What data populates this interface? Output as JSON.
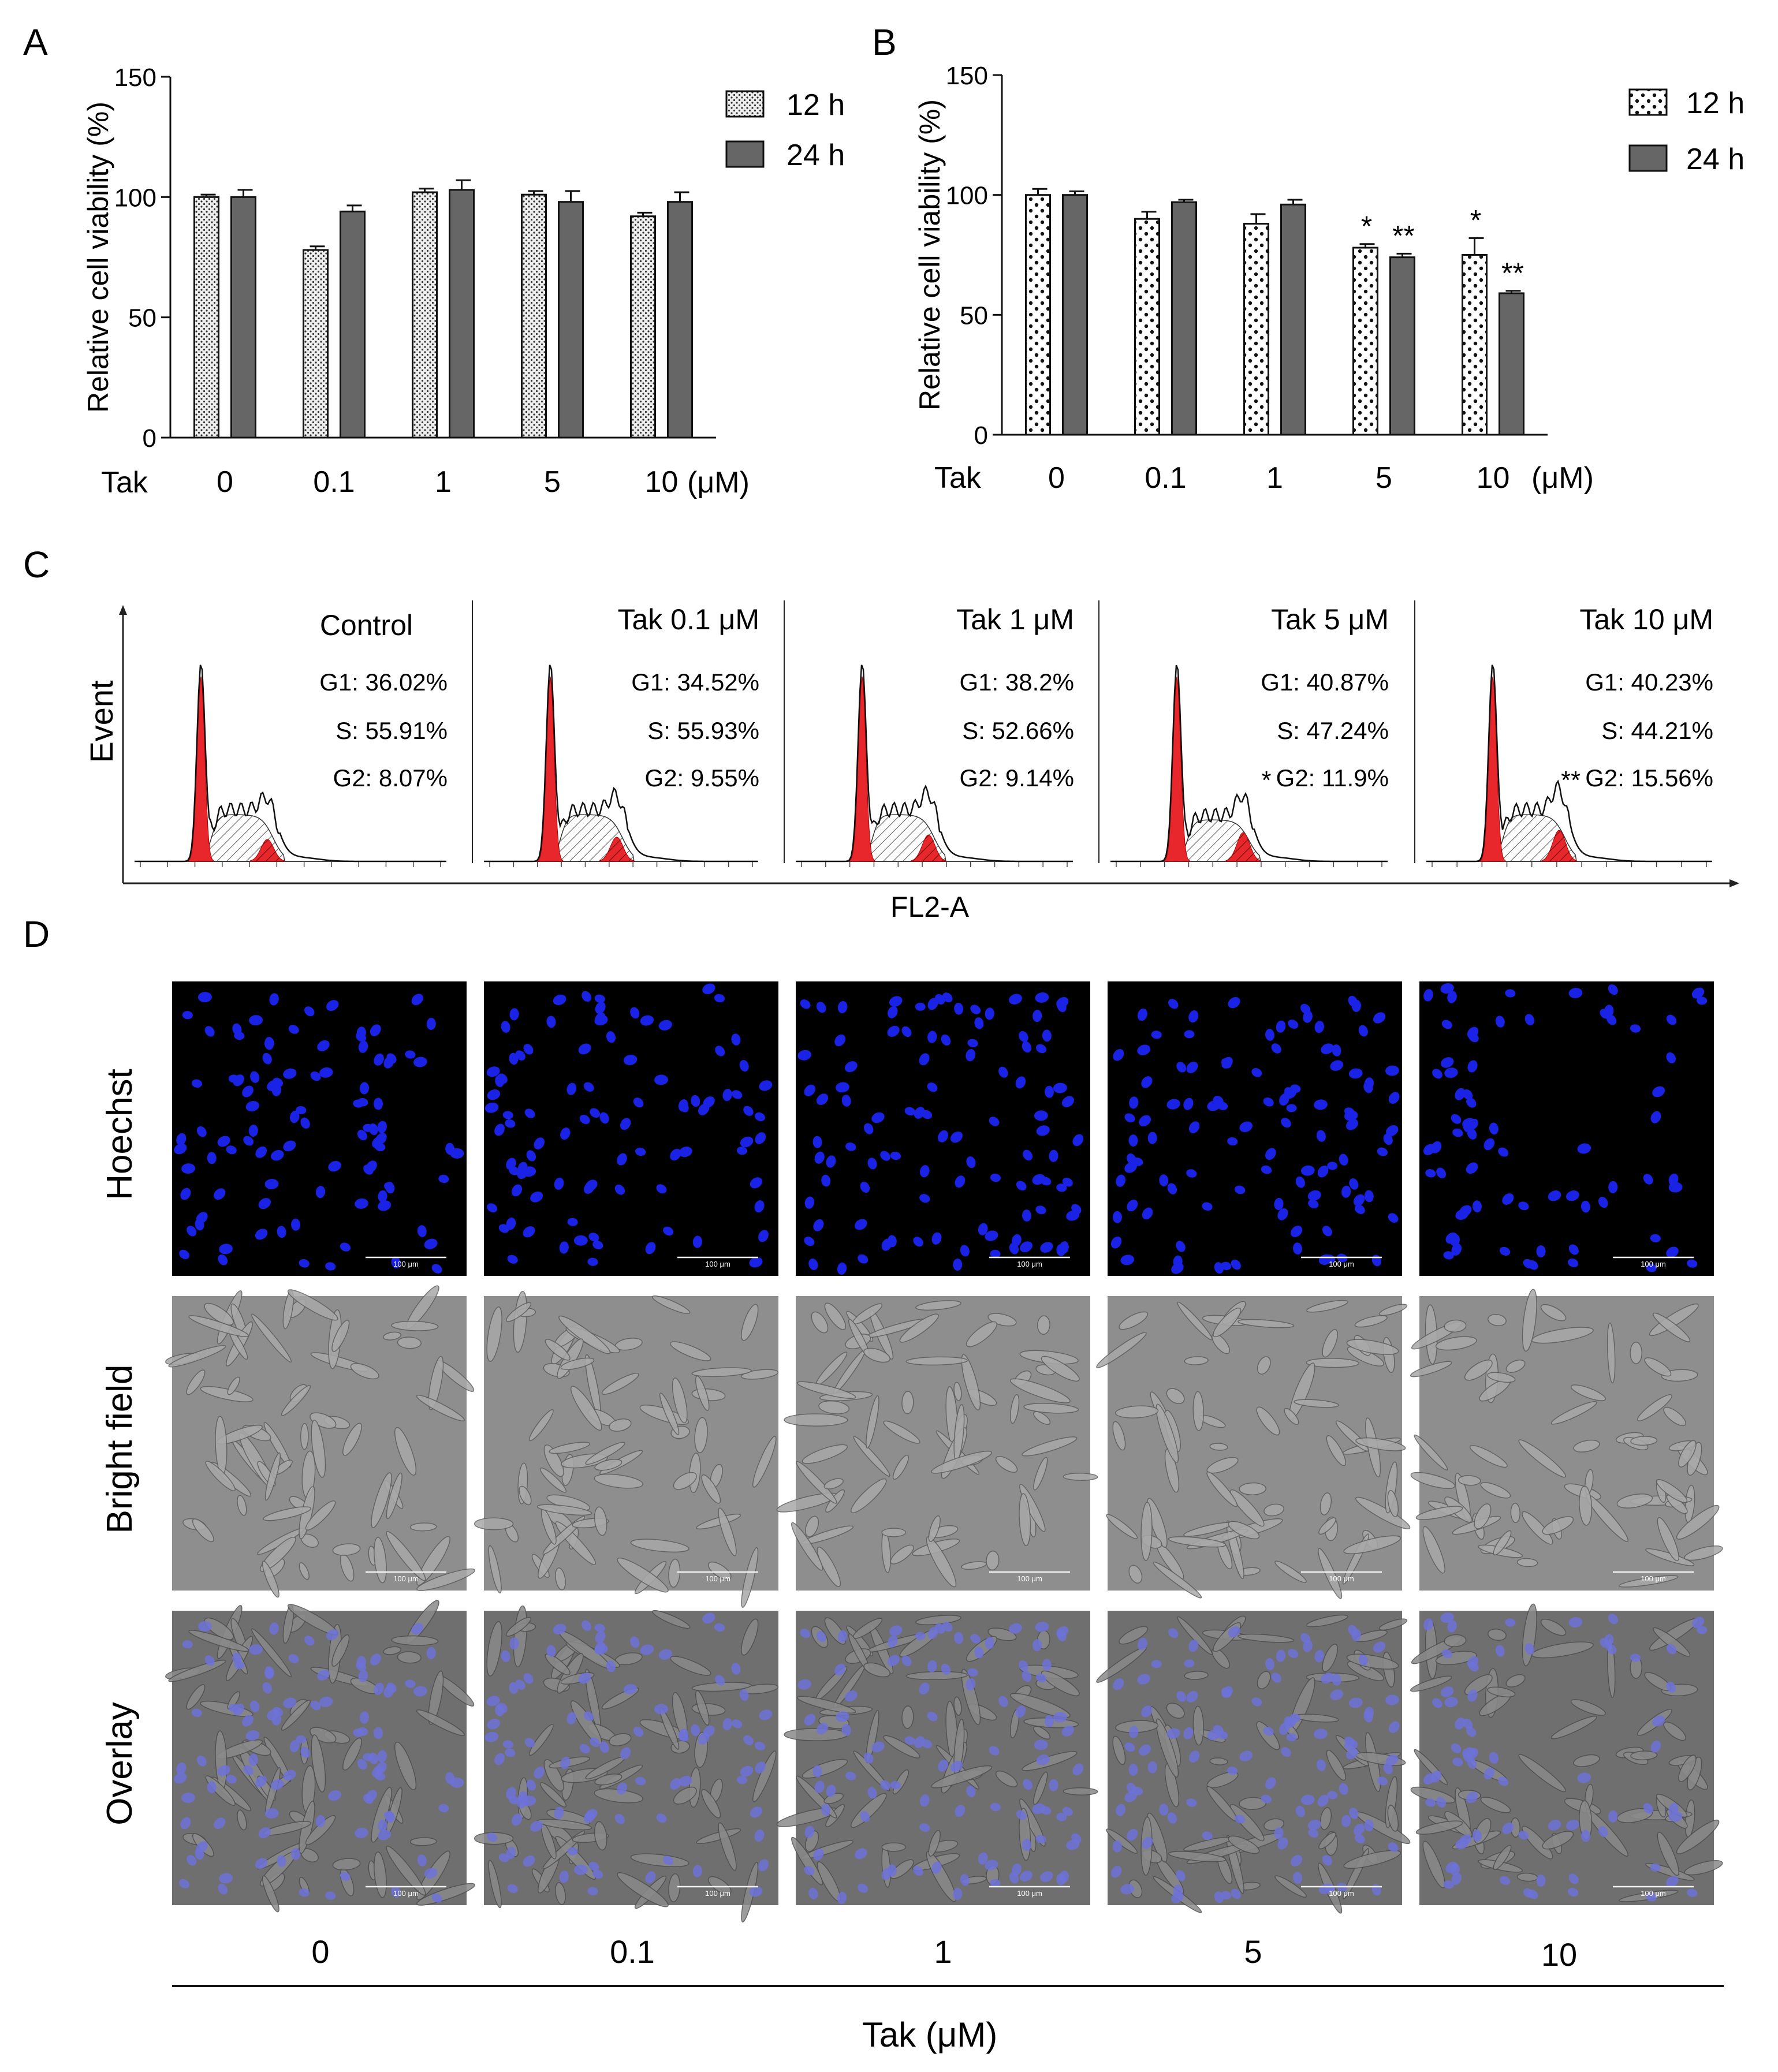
{
  "colors": {
    "bar_24h": "#666666",
    "bar_12h_fill": "#eeeeee",
    "red_fill": "#e8272c",
    "hoechst_bg": "#000000",
    "nucleus_blue": "#1a22e6",
    "bright_bg": "#8e8e8e",
    "overlay_bg": "#6f6f6f"
  },
  "panel_a": {
    "letter": "A",
    "tak_label": "Tak",
    "unit_label": "(μM)",
    "legend": [
      "12 h",
      "24 h"
    ]
  },
  "panel_b": {
    "letter": "B",
    "tak_label": "Tak",
    "unit_label": "(μM)",
    "legend": [
      "12 h",
      "24 h"
    ],
    "significance": [
      {
        "category": "5",
        "series": "12 h",
        "mark": "*"
      },
      {
        "category": "5",
        "series": "24 h",
        "mark": "**"
      },
      {
        "category": "10",
        "series": "12 h",
        "mark": "*"
      },
      {
        "category": "10",
        "series": "24 h",
        "mark": "**"
      }
    ]
  },
  "panel_c": {
    "letter": "C",
    "ylabel": "Event",
    "xlabel": "FL2-A",
    "histograms": [
      {
        "title": "Control",
        "g1": "G1: 36.02%",
        "s": "S: 55.91%",
        "g2": "G2: 8.07%",
        "star": ""
      },
      {
        "title": "Tak 0.1 μM",
        "g1": "G1: 34.52%",
        "s": "S: 55.93%",
        "g2": "G2: 9.55%",
        "star": ""
      },
      {
        "title": "Tak 1 μM",
        "g1": "G1: 38.2%",
        "s": "S: 52.66%",
        "g2": "G2: 9.14%",
        "star": ""
      },
      {
        "title": "Tak 5 μM",
        "g1": "G1: 40.87%",
        "s": "S: 47.24%",
        "g2": "G2: 11.9%",
        "star": "*"
      },
      {
        "title": "Tak 10 μM",
        "g1": "G1: 40.23%",
        "s": "S: 44.21%",
        "g2": "G2: 15.56%",
        "star": "**"
      }
    ]
  },
  "panel_d": {
    "letter": "D",
    "rows": [
      "Hoechst",
      "Bright field",
      "Overlay"
    ],
    "columns": [
      "0",
      "0.1",
      "1",
      "5",
      "10"
    ],
    "scale_bar": "100 μm",
    "xlabel": "Tak (μM)"
  },
  "chart_data": [
    {
      "type": "bar",
      "panel": "A",
      "categories": [
        "0",
        "0.1",
        "1",
        "5",
        "10"
      ],
      "series": [
        {
          "name": "12 h",
          "values": [
            100,
            78,
            102,
            101,
            92
          ],
          "errors": [
            1,
            1.5,
            1.5,
            1.5,
            1.5
          ]
        },
        {
          "name": "24 h",
          "values": [
            100,
            94,
            103,
            98,
            98
          ],
          "errors": [
            3,
            2.5,
            4,
            4.5,
            4
          ]
        }
      ],
      "title": "",
      "xlabel": "",
      "ylabel": "Relative cell viability (%)",
      "ylim": [
        0,
        150
      ],
      "yticks": [
        0,
        50,
        100,
        150
      ],
      "legend": "top-right",
      "grid": false
    },
    {
      "type": "bar",
      "panel": "B",
      "categories": [
        "0",
        "0.1",
        "1",
        "5",
        "10"
      ],
      "series": [
        {
          "name": "12 h",
          "values": [
            100,
            90,
            88,
            78,
            75
          ],
          "errors": [
            2.5,
            3,
            4,
            1.5,
            7
          ]
        },
        {
          "name": "24 h",
          "values": [
            100,
            97,
            96,
            74,
            59
          ],
          "errors": [
            1.5,
            1,
            2,
            1.5,
            1
          ]
        }
      ],
      "title": "",
      "xlabel": "",
      "ylabel": "Relative cell viability (%)",
      "ylim": [
        0,
        150
      ],
      "yticks": [
        0,
        50,
        100,
        150
      ],
      "legend": "top-right",
      "grid": false
    }
  ]
}
